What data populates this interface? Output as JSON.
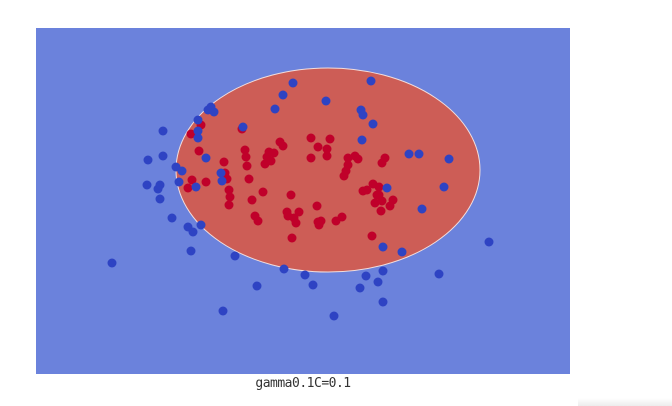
{
  "chart_data": {
    "type": "scatter",
    "title": "",
    "caption": "gamma0.1C=0.1",
    "xlabel": "",
    "ylabel": "",
    "xlim": [
      0,
      534
    ],
    "ylim": [
      0,
      346
    ],
    "grid": false,
    "legend": "none",
    "background_color": "#6b82dc",
    "decision_region": {
      "shape": "ellipse",
      "center": [
        292,
        142
      ],
      "radii": [
        152,
        102
      ],
      "color": "#cd5d56",
      "edge_color": "#f2dede"
    },
    "series": [
      {
        "color": "#c0002a",
        "points": [
          [
            155,
            106
          ],
          [
            165,
            97
          ],
          [
            163,
            123
          ],
          [
            152,
            160
          ],
          [
            156,
            152
          ],
          [
            170,
            154
          ],
          [
            188,
            134
          ],
          [
            189,
            145
          ],
          [
            191,
            151
          ],
          [
            193,
            162
          ],
          [
            193,
            177
          ],
          [
            194,
            169
          ],
          [
            206,
            101
          ],
          [
            209,
            122
          ],
          [
            210,
            129
          ],
          [
            211,
            138
          ],
          [
            213,
            151
          ],
          [
            216,
            172
          ],
          [
            219,
            188
          ],
          [
            222,
            193
          ],
          [
            227,
            164
          ],
          [
            229,
            136
          ],
          [
            231,
            129
          ],
          [
            233,
            124
          ],
          [
            235,
            133
          ],
          [
            238,
            125
          ],
          [
            244,
            114
          ],
          [
            247,
            118
          ],
          [
            251,
            184
          ],
          [
            252,
            188
          ],
          [
            255,
            167
          ],
          [
            256,
            210
          ],
          [
            258,
            190
          ],
          [
            260,
            195
          ],
          [
            263,
            184
          ],
          [
            275,
            130
          ],
          [
            275,
            110
          ],
          [
            282,
            119
          ],
          [
            281,
            178
          ],
          [
            282,
            194
          ],
          [
            283,
            197
          ],
          [
            285,
            193
          ],
          [
            291,
            128
          ],
          [
            291,
            121
          ],
          [
            294,
            111
          ],
          [
            300,
            193
          ],
          [
            306,
            189
          ],
          [
            308,
            148
          ],
          [
            310,
            143
          ],
          [
            312,
            137
          ],
          [
            312,
            130
          ],
          [
            319,
            128
          ],
          [
            322,
            131
          ],
          [
            327,
            163
          ],
          [
            331,
            162
          ],
          [
            336,
            208
          ],
          [
            337,
            156
          ],
          [
            339,
            175
          ],
          [
            341,
            167
          ],
          [
            343,
            159
          ],
          [
            343,
            167
          ],
          [
            345,
            183
          ],
          [
            346,
            173
          ],
          [
            346,
            135
          ],
          [
            349,
            130
          ],
          [
            354,
            178
          ],
          [
            357,
            172
          ]
        ]
      },
      {
        "color": "#2e43c3",
        "points": [
          [
            76,
            235
          ],
          [
            111,
            157
          ],
          [
            112,
            132
          ],
          [
            122,
            161
          ],
          [
            124,
            171
          ],
          [
            124,
            157
          ],
          [
            127,
            103
          ],
          [
            127,
            128
          ],
          [
            136,
            190
          ],
          [
            140,
            139
          ],
          [
            143,
            154
          ],
          [
            146,
            143
          ],
          [
            152,
            199
          ],
          [
            155,
            223
          ],
          [
            157,
            204
          ],
          [
            160,
            159
          ],
          [
            162,
            110
          ],
          [
            162,
            92
          ],
          [
            162,
            103
          ],
          [
            165,
            197
          ],
          [
            170,
            130
          ],
          [
            172,
            82
          ],
          [
            175,
            79
          ],
          [
            178,
            84
          ],
          [
            185,
            145
          ],
          [
            186,
            153
          ],
          [
            187,
            283
          ],
          [
            199,
            228
          ],
          [
            207,
            99
          ],
          [
            221,
            258
          ],
          [
            239,
            81
          ],
          [
            247,
            67
          ],
          [
            248,
            241
          ],
          [
            257,
            55
          ],
          [
            269,
            247
          ],
          [
            277,
            257
          ],
          [
            290,
            73
          ],
          [
            298,
            288
          ],
          [
            324,
            260
          ],
          [
            325,
            82
          ],
          [
            326,
            112
          ],
          [
            327,
            87
          ],
          [
            330,
            248
          ],
          [
            335,
            53
          ],
          [
            337,
            96
          ],
          [
            342,
            254
          ],
          [
            347,
            274
          ],
          [
            347,
            243
          ],
          [
            347,
            219
          ],
          [
            351,
            160
          ],
          [
            366,
            224
          ],
          [
            373,
            126
          ],
          [
            383,
            126
          ],
          [
            386,
            181
          ],
          [
            403,
            246
          ],
          [
            408,
            159
          ],
          [
            413,
            131
          ],
          [
            453,
            214
          ]
        ]
      }
    ]
  }
}
